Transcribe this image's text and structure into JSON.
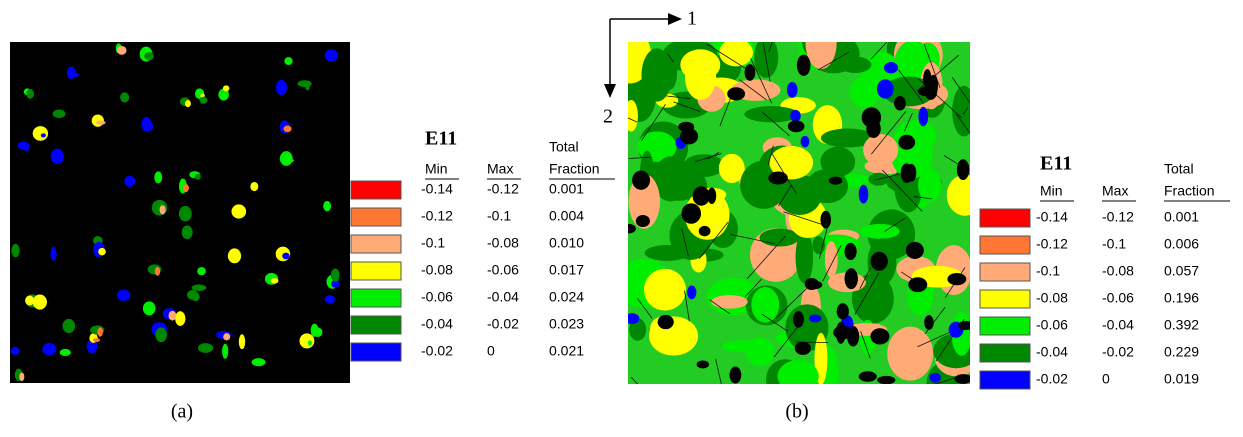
{
  "figure": {
    "axes": {
      "x_label": "1",
      "y_label": "2"
    },
    "panels": [
      {
        "caption": "(a)",
        "legend": {
          "title": "E11",
          "headers": {
            "min": "Min",
            "max": "Max",
            "total": "Total",
            "fraction": "Fraction"
          },
          "rows": [
            {
              "color": "#ff0000",
              "min": "-0.14",
              "max": "-0.12",
              "fraction": "0.001"
            },
            {
              "color": "#ff7733",
              "min": "-0.12",
              "max": "-0.1",
              "fraction": "0.004"
            },
            {
              "color": "#ffaa77",
              "min": "-0.1",
              "max": "-0.08",
              "fraction": "0.010"
            },
            {
              "color": "#ffff00",
              "min": "-0.08",
              "max": "-0.06",
              "fraction": "0.017"
            },
            {
              "color": "#00ee00",
              "min": "-0.06",
              "max": "-0.04",
              "fraction": "0.024"
            },
            {
              "color": "#008800",
              "min": "-0.04",
              "max": "-0.02",
              "fraction": "0.023"
            },
            {
              "color": "#0000ff",
              "min": "-0.02",
              "max": "0",
              "fraction": "0.021"
            }
          ]
        }
      },
      {
        "caption": "(b)",
        "legend": {
          "title": "E11",
          "headers": {
            "min": "Min",
            "max": "Max",
            "total": "Total",
            "fraction": "Fraction"
          },
          "rows": [
            {
              "color": "#ff0000",
              "min": "-0.14",
              "max": "-0.12",
              "fraction": "0.001"
            },
            {
              "color": "#ff7733",
              "min": "-0.12",
              "max": "-0.1",
              "fraction": "0.006"
            },
            {
              "color": "#ffaa77",
              "min": "-0.1",
              "max": "-0.08",
              "fraction": "0.057"
            },
            {
              "color": "#ffff00",
              "min": "-0.08",
              "max": "-0.06",
              "fraction": "0.196"
            },
            {
              "color": "#00ee00",
              "min": "-0.06",
              "max": "-0.04",
              "fraction": "0.392"
            },
            {
              "color": "#008800",
              "min": "-0.04",
              "max": "-0.02",
              "fraction": "0.229"
            },
            {
              "color": "#0000ff",
              "min": "-0.02",
              "max": "0",
              "fraction": "0.019"
            }
          ]
        }
      }
    ]
  }
}
